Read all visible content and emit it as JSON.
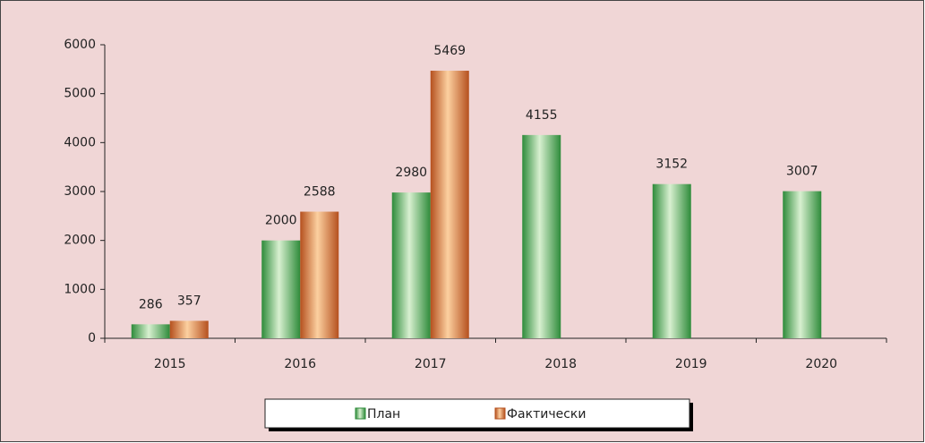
{
  "chart_data": {
    "type": "bar",
    "categories": [
      "2015",
      "2016",
      "2017",
      "2018",
      "2019",
      "2020"
    ],
    "series": [
      {
        "name": "План",
        "color": "#2e8b3a",
        "values": [
          286,
          2000,
          2980,
          4155,
          3152,
          3007
        ]
      },
      {
        "name": "Фактически",
        "color": "#b5501e",
        "values": [
          357,
          2588,
          5469,
          null,
          null,
          null
        ]
      }
    ],
    "ylim": [
      0,
      6000
    ],
    "yticks": [
      0,
      1000,
      2000,
      3000,
      4000,
      5000,
      6000
    ],
    "legend": "bottom"
  }
}
